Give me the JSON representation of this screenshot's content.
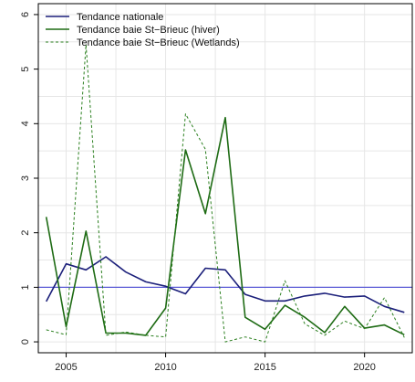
{
  "chart_data": {
    "type": "line",
    "title": "",
    "xlabel": "",
    "ylabel": "",
    "xlim": [
      2003.6,
      2022.4
    ],
    "ylim": [
      -0.2,
      6.2
    ],
    "xticks": [
      2005,
      2010,
      2015,
      2020
    ],
    "yticks": [
      0,
      1,
      2,
      3,
      4,
      5,
      6
    ],
    "grid": true,
    "legend_position": "top-left",
    "reference_line": {
      "y": 1,
      "color": "#5a5ad6"
    },
    "x": [
      2004,
      2005,
      2006,
      2007,
      2008,
      2009,
      2010,
      2011,
      2012,
      2013,
      2014,
      2015,
      2016,
      2017,
      2018,
      2019,
      2020,
      2021,
      2022
    ],
    "series": [
      {
        "name": "Tendance nationale",
        "color": "#1b1f7a",
        "dash": "solid",
        "values": [
          0.74,
          1.43,
          1.32,
          1.56,
          1.28,
          1.1,
          1.02,
          0.88,
          1.35,
          1.32,
          0.87,
          0.75,
          0.75,
          0.84,
          0.89,
          0.82,
          0.84,
          0.65,
          0.54
        ]
      },
      {
        "name": "Tendance baie St−Brieuc (hiver)",
        "color": "#1e6b14",
        "dash": "solid",
        "values": [
          2.29,
          0.28,
          2.03,
          0.16,
          0.16,
          0.12,
          0.62,
          3.52,
          2.35,
          4.11,
          0.45,
          0.23,
          0.67,
          0.45,
          0.17,
          0.65,
          0.25,
          0.31,
          0.13
        ]
      },
      {
        "name": "Tendance baie St−Brieuc (Wetlands)",
        "color": "#2a7f1e",
        "dash": "dashed",
        "values": [
          0.22,
          0.13,
          5.45,
          0.12,
          0.18,
          0.12,
          0.09,
          4.18,
          3.53,
          0.0,
          0.09,
          0.0,
          1.12,
          0.33,
          0.12,
          0.38,
          0.24,
          0.81,
          0.08
        ]
      }
    ]
  }
}
